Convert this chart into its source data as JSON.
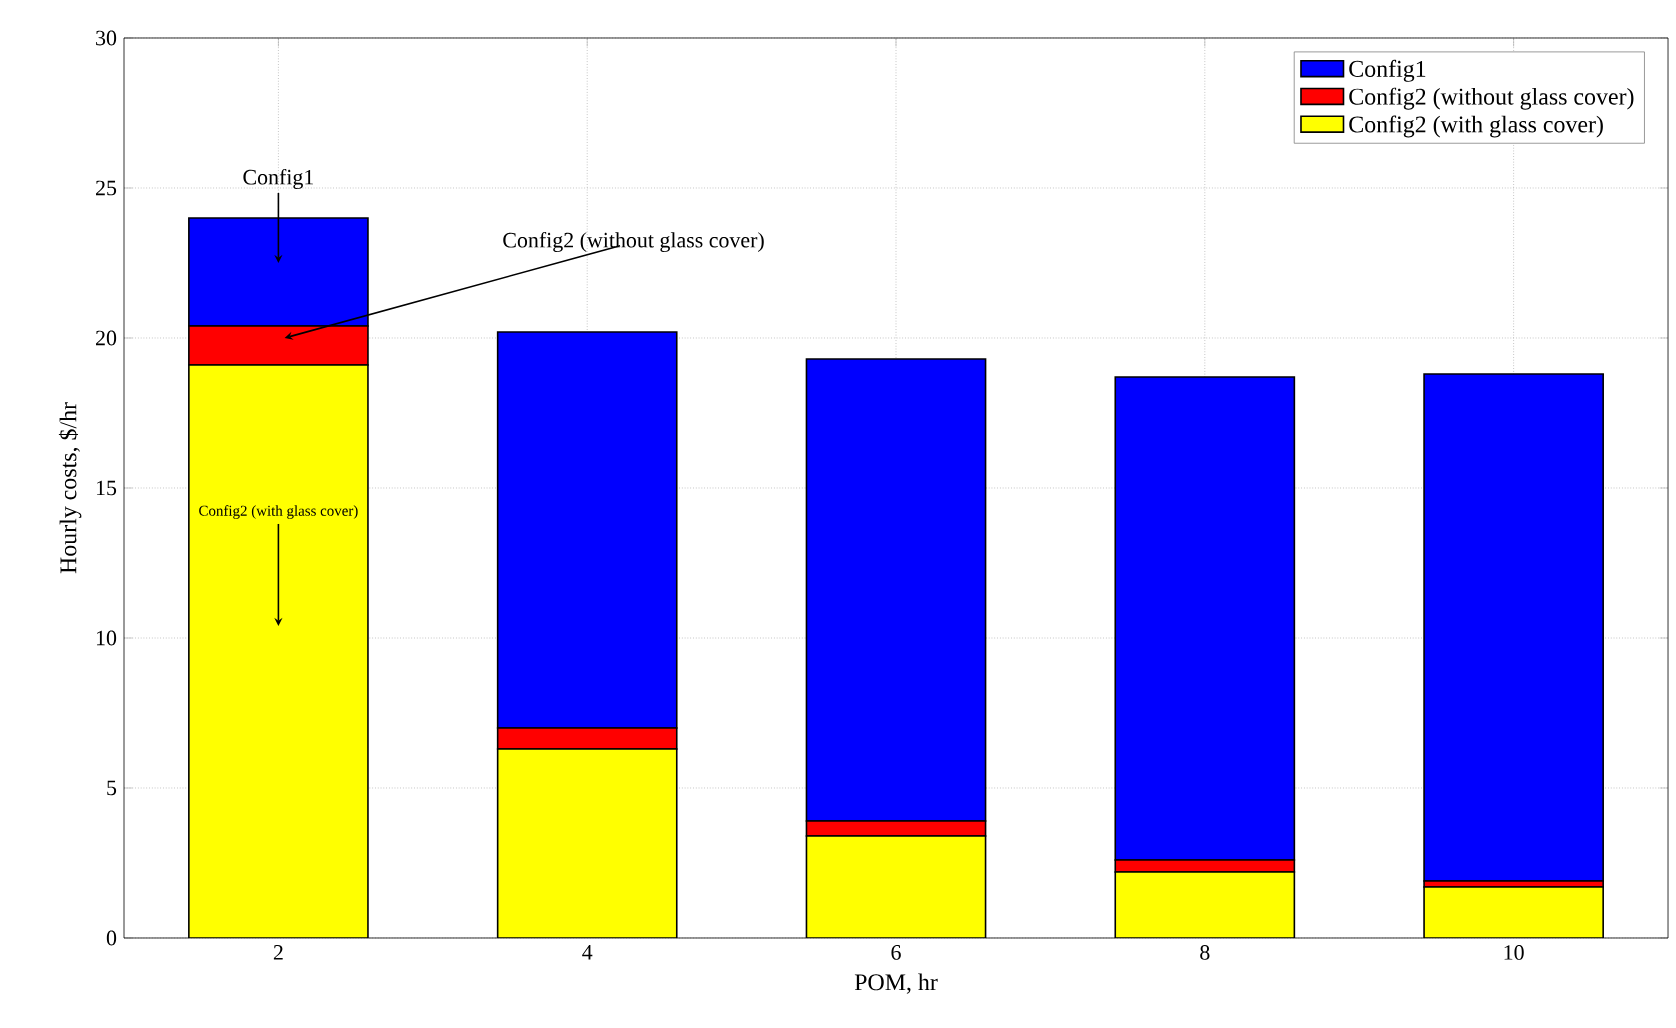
{
  "chart_data": {
    "type": "bar",
    "stacked": true,
    "xlabel": "POM, hr",
    "ylabel": "Hourly costs, $/hr",
    "categories": [
      "2",
      "4",
      "6",
      "8",
      "10"
    ],
    "series": [
      {
        "name": "Config2 (with glass cover)",
        "color": "#ffff00",
        "values": [
          19.1,
          6.3,
          3.4,
          2.2,
          1.7
        ]
      },
      {
        "name": "Config2 (without glass cover)",
        "color": "#ff0000",
        "values": [
          1.3,
          0.7,
          0.5,
          0.4,
          0.2
        ]
      },
      {
        "name": "Config1",
        "color": "#0000ff",
        "values": [
          3.6,
          13.2,
          15.4,
          16.1,
          16.9
        ]
      }
    ],
    "ylim": [
      0,
      30
    ],
    "yticks": [
      0,
      5,
      10,
      15,
      20,
      25,
      30
    ],
    "grid": true,
    "legend": "top right",
    "annotations": [
      "Config1",
      "Config2 (without glass cover)",
      "Config2 (with glass cover)"
    ]
  }
}
